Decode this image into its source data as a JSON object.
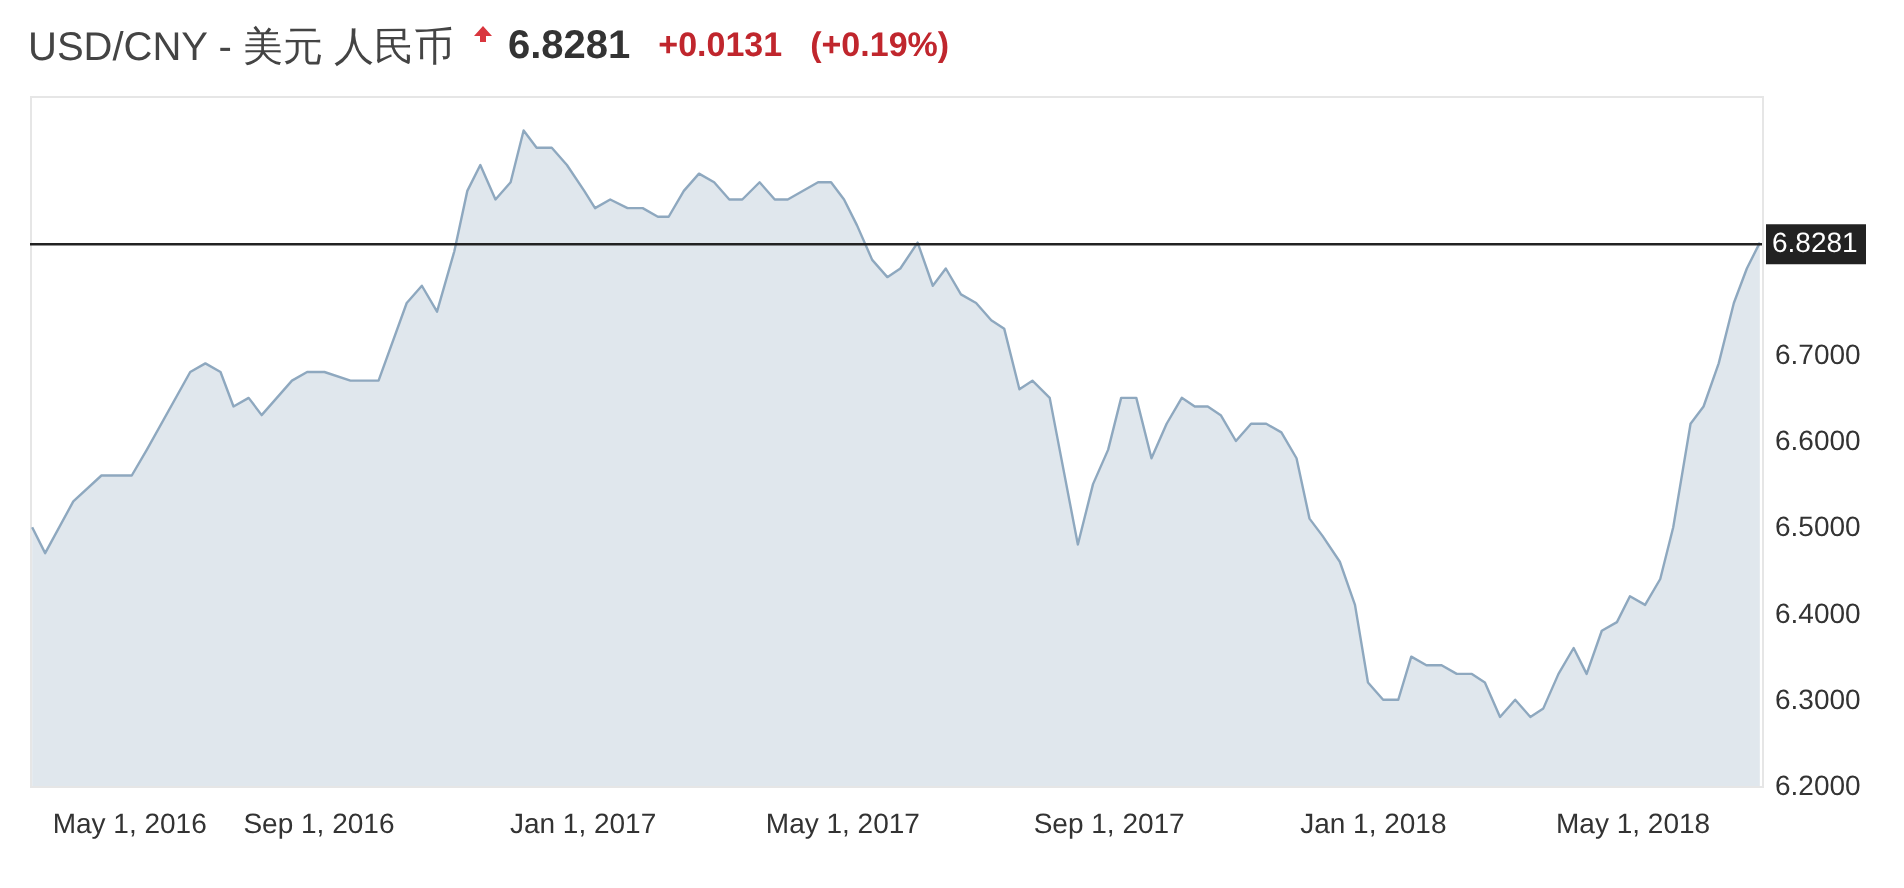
{
  "chart_data": {
    "type": "area",
    "title": "USD/CNY - 美元 人民币",
    "annotations": [
      "6.8281",
      "+0.0131",
      "(+0.19%)"
    ],
    "xlim": [
      "2016-04-21",
      "2018-06-30"
    ],
    "xticks": [
      {
        "value": "2016-05-01",
        "label": "May 1, 2016"
      },
      {
        "value": "2016-09-01",
        "label": "Sep 1, 2016"
      },
      {
        "value": "2017-01-01",
        "label": "Jan 1, 2017"
      },
      {
        "value": "2017-05-01",
        "label": "May 1, 2017"
      },
      {
        "value": "2017-09-01",
        "label": "Sep 1, 2017"
      },
      {
        "value": "2018-01-01",
        "label": "Jan 1, 2018"
      },
      {
        "value": "2018-05-01",
        "label": "May 1, 2018"
      }
    ],
    "ylim": [
      6.2,
      7.0
    ],
    "yticks": [
      {
        "value": 6.2,
        "label": "6.2000"
      },
      {
        "value": 6.3,
        "label": "6.3000"
      },
      {
        "value": 6.4,
        "label": "6.4000"
      },
      {
        "value": 6.5,
        "label": "6.5000"
      },
      {
        "value": 6.6,
        "label": "6.6000"
      },
      {
        "value": 6.7,
        "label": "6.7000"
      }
    ],
    "ref_lines": [
      {
        "axis": "y",
        "value": 6.8281,
        "label": "6.8281",
        "color": "#222222"
      }
    ],
    "series": [
      {
        "color": "#8ea8bf",
        "x": [
          "2016-04-22",
          "2016-04-28",
          "2016-05-11",
          "2016-05-24",
          "2016-05-30",
          "2016-06-07",
          "2016-06-14",
          "2016-07-04",
          "2016-07-11",
          "2016-07-18",
          "2016-07-24",
          "2016-07-31",
          "2016-08-06",
          "2016-08-20",
          "2016-08-27",
          "2016-09-04",
          "2016-09-16",
          "2016-09-29",
          "2016-10-12",
          "2016-10-19",
          "2016-10-26",
          "2016-11-03",
          "2016-11-09",
          "2016-11-15",
          "2016-11-22",
          "2016-11-29",
          "2016-12-05",
          "2016-12-11",
          "2016-12-18",
          "2016-12-25",
          "2017-01-02",
          "2017-01-07",
          "2017-01-14",
          "2017-01-22",
          "2017-01-29",
          "2017-02-05",
          "2017-02-10",
          "2017-02-17",
          "2017-02-24",
          "2017-03-03",
          "2017-03-10",
          "2017-03-16",
          "2017-03-24",
          "2017-03-31",
          "2017-04-06",
          "2017-04-20",
          "2017-04-26",
          "2017-05-02",
          "2017-05-08",
          "2017-05-15",
          "2017-05-22",
          "2017-05-28",
          "2017-06-05",
          "2017-06-12",
          "2017-06-18",
          "2017-06-25",
          "2017-07-02",
          "2017-07-09",
          "2017-07-15",
          "2017-07-22",
          "2017-07-28",
          "2017-08-05",
          "2017-08-18",
          "2017-08-25",
          "2017-09-01",
          "2017-09-07",
          "2017-09-14",
          "2017-09-21",
          "2017-09-28",
          "2017-10-05",
          "2017-10-11",
          "2017-10-17",
          "2017-10-23",
          "2017-10-30",
          "2017-11-06",
          "2017-11-13",
          "2017-11-20",
          "2017-11-27",
          "2017-12-03",
          "2017-12-09",
          "2017-12-17",
          "2017-12-24",
          "2017-12-30",
          "2018-01-06",
          "2018-01-13",
          "2018-01-19",
          "2018-01-26",
          "2018-02-02",
          "2018-02-09",
          "2018-02-16",
          "2018-02-22",
          "2018-03-01",
          "2018-03-08",
          "2018-03-15",
          "2018-03-21",
          "2018-03-28",
          "2018-04-04",
          "2018-04-10",
          "2018-04-17",
          "2018-04-24",
          "2018-04-30",
          "2018-05-07",
          "2018-05-14",
          "2018-05-20",
          "2018-05-28",
          "2018-06-03",
          "2018-06-10",
          "2018-06-17",
          "2018-06-23",
          "2018-06-29"
        ],
        "values": [
          6.5,
          6.47,
          6.53,
          6.56,
          6.56,
          6.56,
          6.59,
          6.68,
          6.69,
          6.68,
          6.64,
          6.65,
          6.63,
          6.67,
          6.68,
          6.68,
          6.67,
          6.67,
          6.76,
          6.78,
          6.75,
          6.82,
          6.89,
          6.92,
          6.88,
          6.9,
          6.96,
          6.94,
          6.94,
          6.92,
          6.89,
          6.87,
          6.88,
          6.87,
          6.87,
          6.86,
          6.86,
          6.89,
          6.91,
          6.9,
          6.88,
          6.88,
          6.9,
          6.88,
          6.88,
          6.9,
          6.9,
          6.88,
          6.85,
          6.81,
          6.79,
          6.8,
          6.83,
          6.78,
          6.8,
          6.77,
          6.76,
          6.74,
          6.73,
          6.66,
          6.67,
          6.65,
          6.48,
          6.55,
          6.59,
          6.65,
          6.65,
          6.58,
          6.62,
          6.65,
          6.64,
          6.64,
          6.63,
          6.6,
          6.62,
          6.62,
          6.61,
          6.58,
          6.51,
          6.49,
          6.46,
          6.41,
          6.32,
          6.3,
          6.3,
          6.35,
          6.34,
          6.34,
          6.33,
          6.33,
          6.32,
          6.28,
          6.3,
          6.28,
          6.29,
          6.33,
          6.36,
          6.33,
          6.38,
          6.39,
          6.42,
          6.41,
          6.44,
          6.5,
          6.62,
          6.64,
          6.69,
          6.76,
          6.8,
          6.83
        ]
      }
    ]
  }
}
